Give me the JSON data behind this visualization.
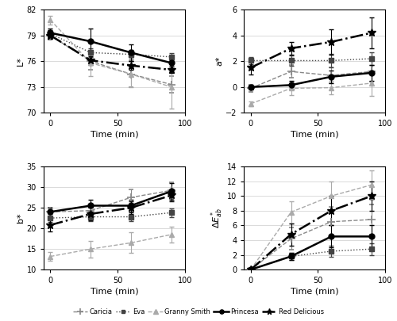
{
  "time": [
    0,
    30,
    60,
    90
  ],
  "L_star": {
    "Caricia": [
      79.0,
      76.0,
      74.5,
      73.3
    ],
    "Eva": [
      79.2,
      77.0,
      76.8,
      76.5
    ],
    "Granny_Smith": [
      80.8,
      75.8,
      74.5,
      73.0
    ],
    "Princesa": [
      79.3,
      78.3,
      77.0,
      75.8
    ],
    "Red_Delicious": [
      79.0,
      76.1,
      75.5,
      75.0
    ]
  },
  "L_star_err": {
    "Caricia": [
      0.5,
      1.0,
      1.5,
      1.0
    ],
    "Eva": [
      0.4,
      0.5,
      0.5,
      0.4
    ],
    "Granny_Smith": [
      0.5,
      1.5,
      1.5,
      2.5
    ],
    "Princesa": [
      0.5,
      1.5,
      1.0,
      0.8
    ],
    "Red_Delicious": [
      0.4,
      0.5,
      0.5,
      0.4
    ]
  },
  "a_star": {
    "Caricia": [
      -0.1,
      1.2,
      0.9,
      1.2
    ],
    "Eva": [
      2.05,
      2.05,
      2.05,
      2.2
    ],
    "Granny_Smith": [
      -1.3,
      -0.1,
      -0.05,
      0.3
    ],
    "Princesa": [
      0.0,
      0.15,
      0.8,
      1.1
    ],
    "Red_Delicious": [
      1.5,
      3.0,
      3.5,
      4.2
    ]
  },
  "a_star_err": {
    "Caricia": [
      0.3,
      0.5,
      0.6,
      0.8
    ],
    "Eva": [
      0.3,
      0.4,
      0.5,
      0.5
    ],
    "Granny_Smith": [
      0.2,
      0.5,
      0.5,
      1.0
    ],
    "Princesa": [
      0.2,
      0.3,
      0.5,
      0.6
    ],
    "Red_Delicious": [
      0.5,
      0.5,
      1.0,
      1.2
    ]
  },
  "b_star": {
    "Caricia": [
      24.0,
      24.3,
      27.5,
      29.2
    ],
    "Eva": [
      22.5,
      22.8,
      22.8,
      23.8
    ],
    "Granny_Smith": [
      13.2,
      15.0,
      16.5,
      18.5
    ],
    "Princesa": [
      24.0,
      25.5,
      25.5,
      29.0
    ],
    "Red_Delicious": [
      20.8,
      23.5,
      25.0,
      28.0
    ]
  },
  "b_star_err": {
    "Caricia": [
      1.0,
      1.5,
      2.0,
      2.0
    ],
    "Eva": [
      1.0,
      1.0,
      1.0,
      1.0
    ],
    "Granny_Smith": [
      1.0,
      2.0,
      2.5,
      2.0
    ],
    "Princesa": [
      1.0,
      1.5,
      1.5,
      2.0
    ],
    "Red_Delicious": [
      1.5,
      1.5,
      1.5,
      1.5
    ]
  },
  "dE_ab": {
    "Caricia": [
      0.0,
      4.2,
      6.5,
      6.8
    ],
    "Eva": [
      0.0,
      1.8,
      2.5,
      2.8
    ],
    "Granny_Smith": [
      0.0,
      7.8,
      10.0,
      11.5
    ],
    "Princesa": [
      0.0,
      1.8,
      4.5,
      4.5
    ],
    "Red_Delicious": [
      0.0,
      4.8,
      8.0,
      10.0
    ]
  },
  "dE_ab_err": {
    "Caricia": [
      0.0,
      1.5,
      2.0,
      2.0
    ],
    "Eva": [
      0.0,
      0.5,
      0.8,
      0.8
    ],
    "Granny_Smith": [
      0.0,
      1.5,
      2.0,
      2.0
    ],
    "Princesa": [
      0.0,
      0.5,
      1.5,
      1.5
    ],
    "Red_Delicious": [
      0.0,
      1.5,
      2.0,
      2.0
    ]
  },
  "series_styles": {
    "Caricia": {
      "color": "#888888",
      "linestyle": "--",
      "marker": "+",
      "ms": 7,
      "mew": 1.2
    },
    "Eva": {
      "color": "#444444",
      "linestyle": ":",
      "marker": "s",
      "ms": 4,
      "mew": 1.0
    },
    "Granny_Smith": {
      "color": "#aaaaaa",
      "linestyle": "--",
      "marker": "^",
      "ms": 5,
      "mew": 1.0
    },
    "Princesa": {
      "color": "#000000",
      "linestyle": "-",
      "marker": "o",
      "ms": 5,
      "mew": 1.0
    },
    "Red_Delicious": {
      "color": "#000000",
      "linestyle": "-.",
      "marker": "*",
      "ms": 7,
      "mew": 1.0
    }
  },
  "series_lw": {
    "Caricia": 1.0,
    "Eva": 1.0,
    "Granny_Smith": 1.0,
    "Princesa": 1.8,
    "Red_Delicious": 1.8
  },
  "legend_labels": [
    "Caricia",
    "Eva",
    "Granny Smith",
    "Princesa",
    "Red Delicious"
  ]
}
